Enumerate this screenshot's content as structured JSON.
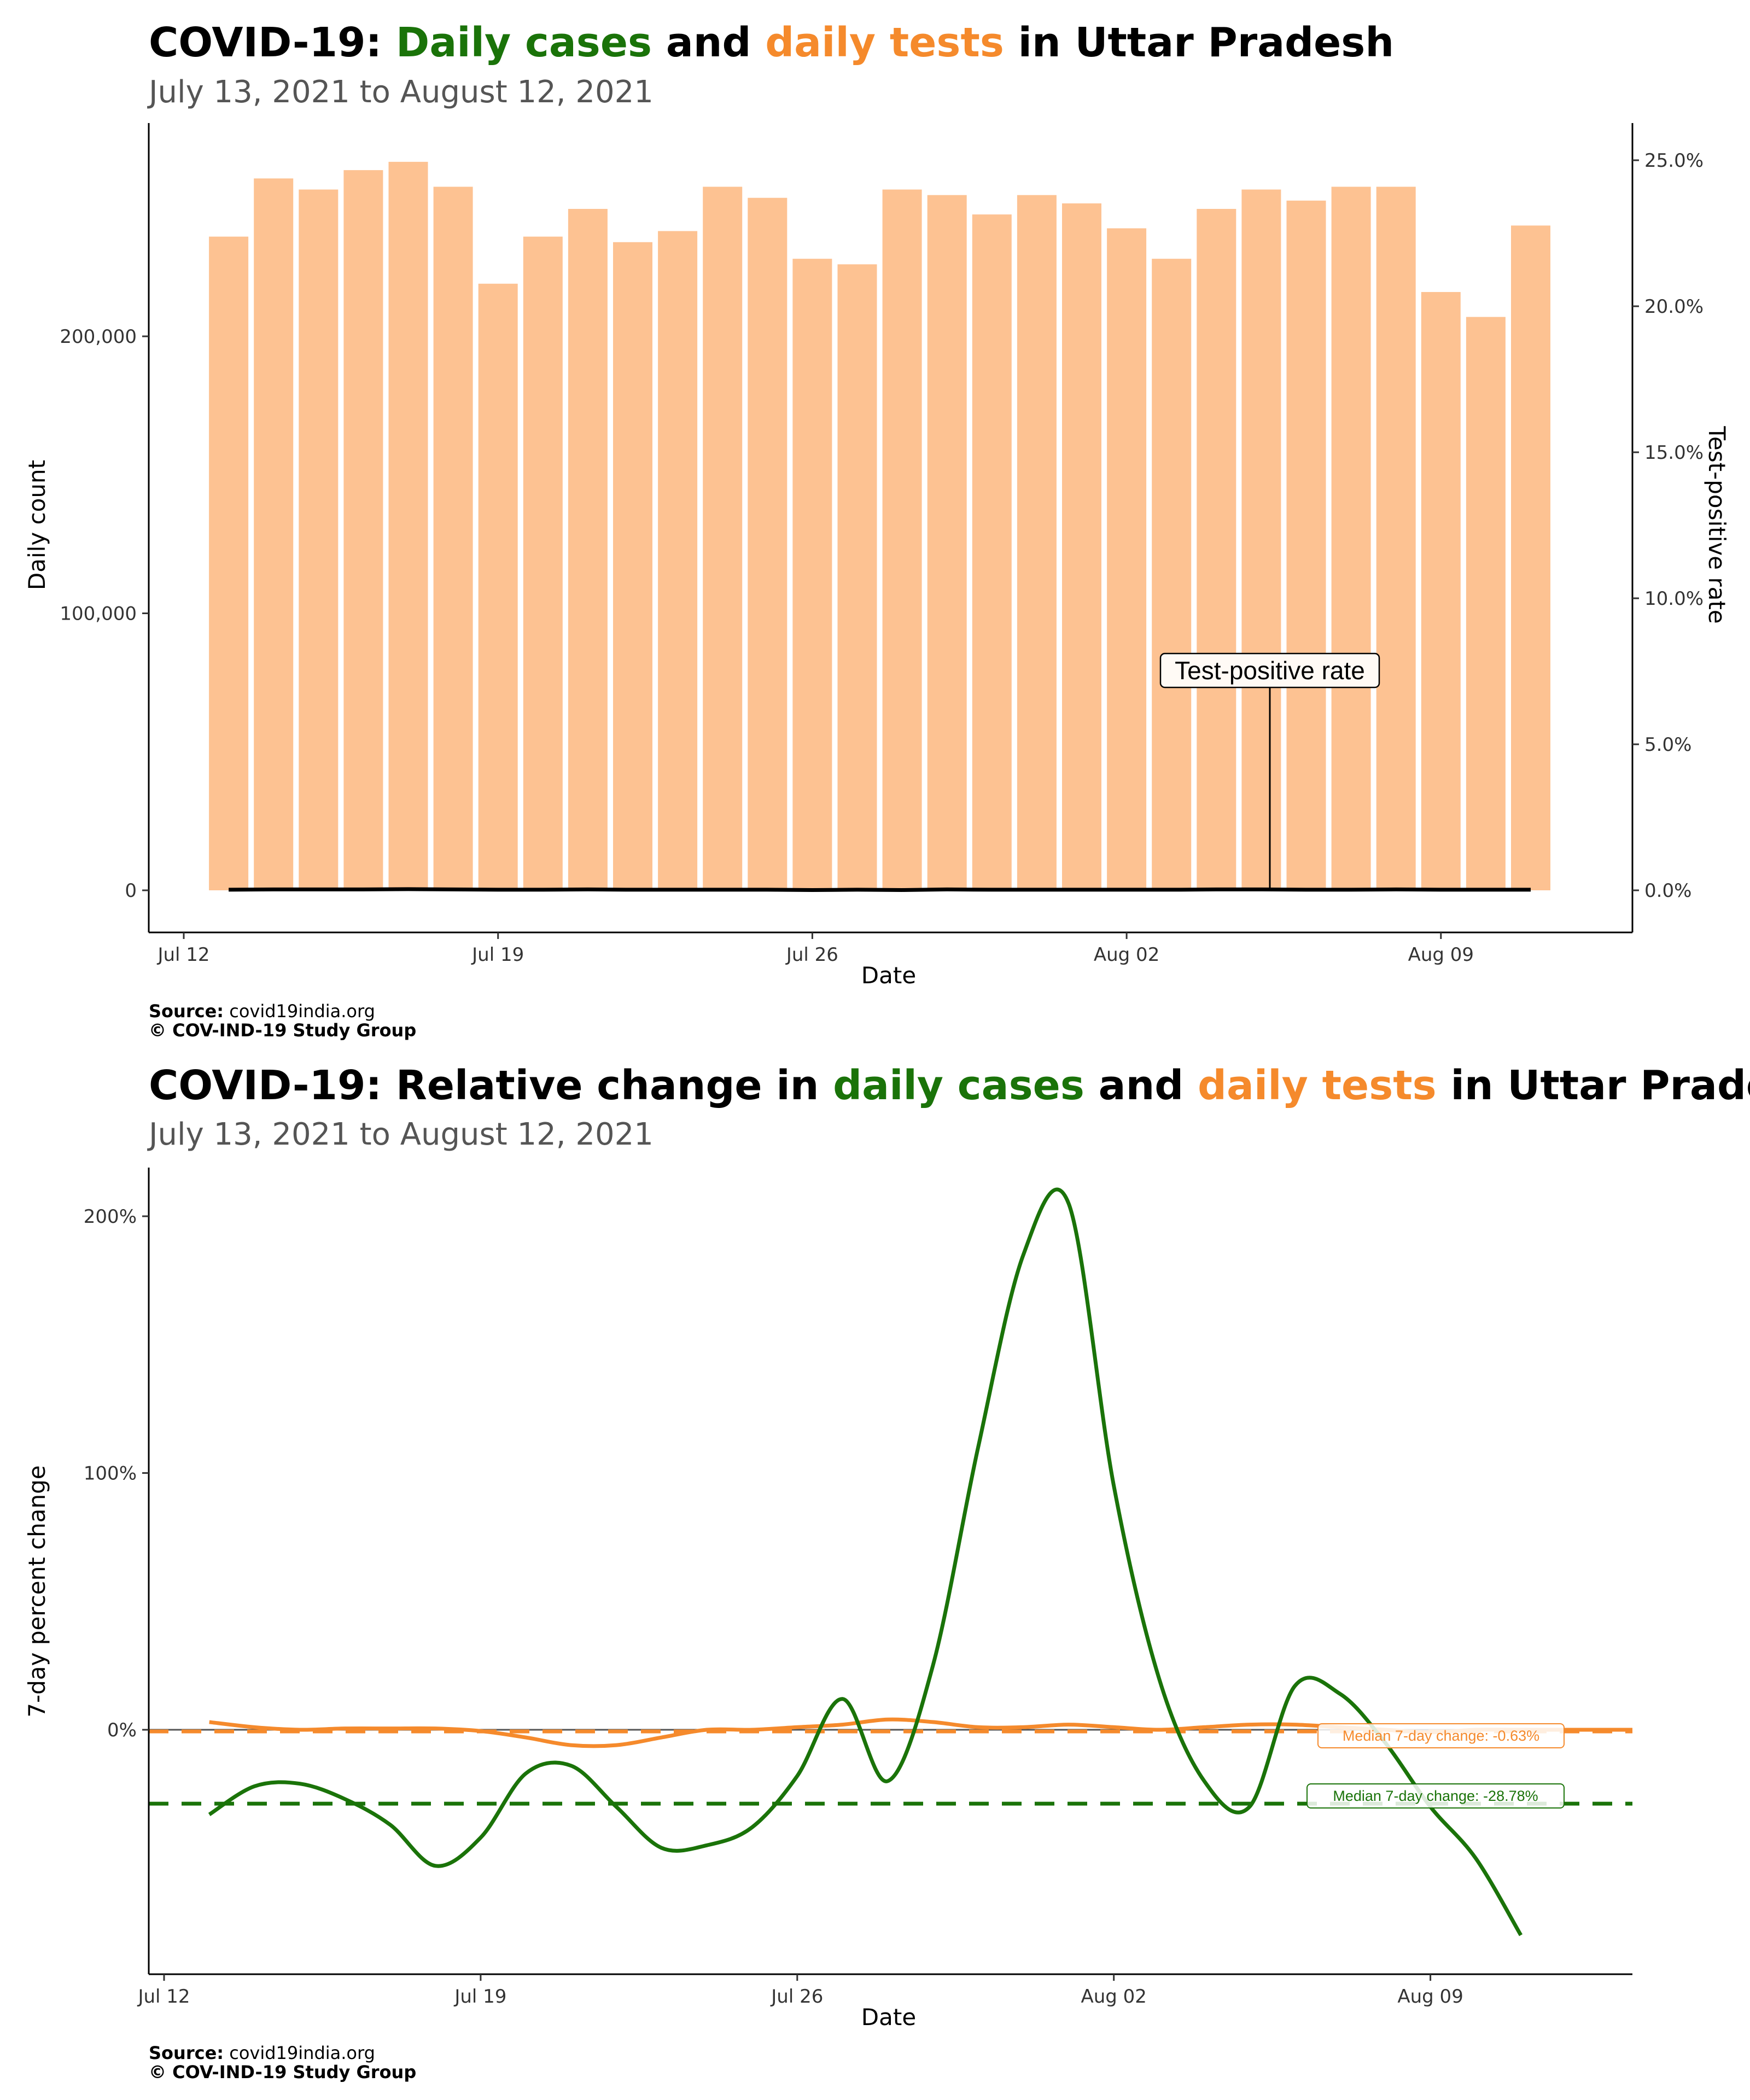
{
  "colors": {
    "cases": "#1a7309",
    "tests": "#f58a2c",
    "bars": "#fdc292",
    "tpr": "#000000"
  },
  "top": {
    "title_prefix": "COVID-19: ",
    "title_cases": "Daily cases",
    "title_and": " and ",
    "title_tests": "daily tests",
    "title_suffix": " in Uttar Pradesh",
    "subtitle": "July 13, 2021 to August 12, 2021",
    "y_label": "Daily count",
    "y2_label": "Test-positive rate",
    "x_label": "Date",
    "annotation": "Test-positive rate",
    "source_bold": "Source:",
    "source_text": " covid19india.org",
    "copyright": "© COV-IND-19 Study Group"
  },
  "bottom": {
    "title_prefix": "COVID-19: Relative change in ",
    "title_cases": "daily cases",
    "title_and": " and ",
    "title_tests": "daily tests",
    "title_suffix": " in Uttar Pradesh",
    "subtitle": "July 13, 2021 to August 12, 2021",
    "y_label": "7-day percent change",
    "x_label": "Date",
    "median_tests_label": "Median 7-day change: -0.63%",
    "median_cases_label": "Median 7-day change: -28.78%",
    "source_bold": "Source:",
    "source_text": " covid19india.org",
    "copyright": "© COV-IND-19 Study Group"
  },
  "chart_data": [
    {
      "type": "bar",
      "x_axis": "date",
      "xlim": [
        "2021-07-12",
        "2021-08-12"
      ],
      "x_ticks": [
        "Jul 12",
        "Jul 19",
        "Jul 26",
        "Aug 02",
        "Aug 09"
      ],
      "y_ticks": [
        "0",
        "100,000",
        "200,000"
      ],
      "y2_ticks": [
        "0.0%",
        "5.0%",
        "10.0%",
        "15.0%",
        "20.0%",
        "25.0%"
      ],
      "ylim": [
        0,
        263000
      ],
      "y2lim": [
        0,
        25.5
      ],
      "dates": [
        "Jul 13",
        "Jul 14",
        "Jul 15",
        "Jul 16",
        "Jul 17",
        "Jul 18",
        "Jul 19",
        "Jul 20",
        "Jul 21",
        "Jul 22",
        "Jul 23",
        "Jul 24",
        "Jul 25",
        "Jul 26",
        "Jul 27",
        "Jul 28",
        "Jul 29",
        "Jul 30",
        "Jul 31",
        "Aug 01",
        "Aug 02",
        "Aug 03",
        "Aug 04",
        "Aug 05",
        "Aug 06",
        "Aug 07",
        "Aug 08",
        "Aug 09",
        "Aug 10",
        "Aug 11"
      ],
      "series": [
        {
          "name": "daily tests",
          "values": [
            236000,
            257000,
            253000,
            260000,
            263000,
            254000,
            219000,
            236000,
            246000,
            234000,
            238000,
            254000,
            250000,
            228000,
            226000,
            253000,
            251000,
            244000,
            251000,
            248000,
            239000,
            228000,
            246000,
            253000,
            249000,
            254000,
            254000,
            216000,
            207000,
            240000
          ]
        },
        {
          "name": "Test-positive rate",
          "values": [
            0.02,
            0.03,
            0.03,
            0.03,
            0.04,
            0.03,
            0.02,
            0.02,
            0.03,
            0.02,
            0.02,
            0.02,
            0.02,
            0.01,
            0.02,
            0.01,
            0.03,
            0.02,
            0.02,
            0.02,
            0.02,
            0.02,
            0.03,
            0.03,
            0.02,
            0.02,
            0.03,
            0.02,
            0.02,
            0.02
          ]
        }
      ]
    },
    {
      "type": "line",
      "x_axis": "date",
      "xlim": [
        "2021-07-12",
        "2021-08-12"
      ],
      "x_ticks": [
        "Jul 12",
        "Jul 19",
        "Jul 26",
        "Aug 02",
        "Aug 09"
      ],
      "y_ticks": [
        "0%",
        "100%",
        "200%"
      ],
      "ylim": [
        -75,
        220
      ],
      "x": [
        "Jul 13",
        "Jul 14",
        "Jul 15",
        "Jul 16",
        "Jul 17",
        "Jul 18",
        "Jul 19",
        "Jul 20",
        "Jul 21",
        "Jul 22",
        "Jul 23",
        "Jul 24",
        "Jul 25",
        "Jul 26",
        "Jul 27",
        "Jul 28",
        "Jul 29",
        "Jul 30",
        "Jul 31",
        "Aug 01",
        "Aug 02",
        "Aug 03",
        "Aug 04",
        "Aug 05",
        "Aug 06",
        "Aug 07",
        "Aug 08",
        "Aug 09",
        "Aug 10",
        "Aug 11"
      ],
      "series": [
        {
          "name": "daily cases",
          "values": [
            -33,
            -22,
            -21,
            -27,
            -37,
            -53,
            -42,
            -17,
            -14,
            -30,
            -46,
            -45,
            -38,
            -18,
            12,
            -20,
            25,
            110,
            185,
            205,
            95,
            20,
            -20,
            -30,
            17,
            14,
            -5,
            -30,
            -50,
            -80
          ]
        },
        {
          "name": "daily tests",
          "values": [
            3,
            1,
            0,
            0.5,
            0.5,
            0.5,
            -0.5,
            -3,
            -6,
            -6,
            -3,
            0,
            0,
            1,
            2,
            4,
            3,
            1,
            1,
            2,
            1,
            0,
            1,
            2,
            2,
            1,
            0,
            -1,
            0,
            0
          ]
        }
      ],
      "reference_lines": [
        {
          "name": "zero",
          "value": 0
        },
        {
          "name": "median 7-day change tests",
          "value": -0.63,
          "label": "Median 7-day change: -0.63%"
        },
        {
          "name": "median 7-day change cases",
          "value": -28.78,
          "label": "Median 7-day change: -28.78%"
        }
      ]
    }
  ]
}
